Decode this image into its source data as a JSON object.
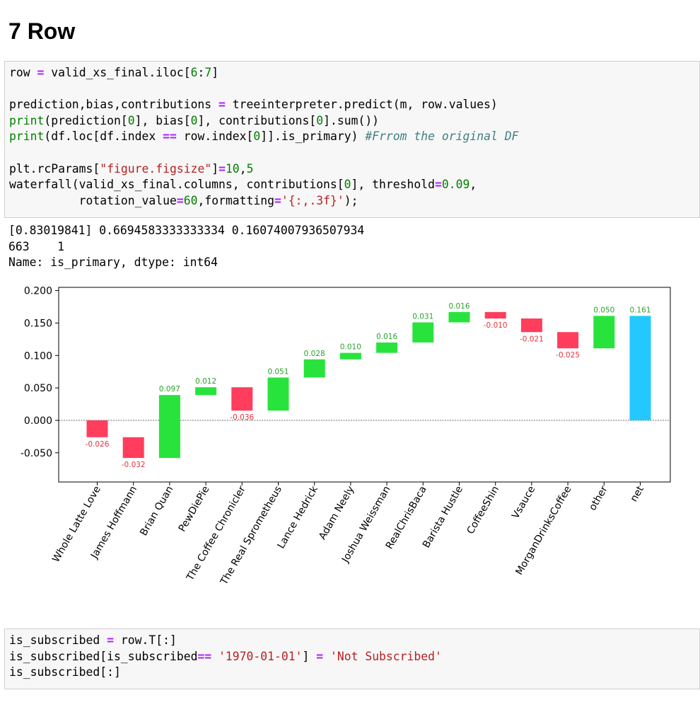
{
  "heading": "7 Row",
  "cell1": {
    "lines": [
      "row = valid_xs_final.iloc[6:7]",
      "",
      "prediction,bias,contributions = treeinterpreter.predict(m, row.values)",
      "print(prediction[0], bias[0], contributions[0].sum())",
      "print(df.loc[df.index == row.index[0]].is_primary) #Frrom the original DF",
      "",
      "plt.rcParams[\"figure.figsize\"]=10,5",
      "waterfall(valid_xs_final.columns, contributions[0], threshold=0.09,",
      "          rotation_value=60,formatting='{:,.3f}');"
    ]
  },
  "output1": {
    "lines": [
      "[0.83019841] 0.6694583333333334 0.16074007936507934",
      "663    1",
      "Name: is_primary, dtype: int64"
    ]
  },
  "chart_data": {
    "type": "bar",
    "subtype": "waterfall",
    "categories": [
      "Whole Latte Love",
      "James Hoffmann",
      "Brian Quan",
      "PewDiePie",
      "The Coffee Chronicler",
      "The Real Sprometheus",
      "Lance Hedrick",
      "Adam Neely",
      "Joshua Weissman",
      "RealChrisBaca",
      "Barista Hustle",
      "CoffeeShin",
      "Vsauce",
      "MorganDrinksCoffee",
      "other",
      "net"
    ],
    "values": [
      -0.026,
      -0.032,
      0.097,
      0.012,
      -0.036,
      0.051,
      0.028,
      0.01,
      0.016,
      0.031,
      0.016,
      -0.01,
      -0.021,
      -0.025,
      0.05,
      0.161
    ],
    "labels": [
      "-0.026",
      "-0.032",
      "0.097",
      "0.012",
      "-0.036",
      "0.051",
      "0.028",
      "0.010",
      "0.016",
      "0.031",
      "0.016",
      "-0.010",
      "-0.021",
      "-0.025",
      "0.050",
      "0.161"
    ],
    "yticks": [
      "0.200",
      "0.150",
      "0.100",
      "0.050",
      "0.000",
      "-0.050"
    ],
    "ylim": [
      -0.095,
      0.205
    ],
    "colors": {
      "positive": "#29e33d",
      "negative": "#ff3d5d",
      "net": "#23c8ff",
      "positive_label": "#2ca02c",
      "negative_label": "#e8323c",
      "baseline": "#555555"
    },
    "grid": false,
    "legend": false
  },
  "cell2": {
    "lines": [
      "is_subscribed = row.T[:]",
      "is_subscribed[is_subscribed== '1970-01-01'] = 'Not Subscribed'",
      "is_subscribed[:]"
    ]
  }
}
